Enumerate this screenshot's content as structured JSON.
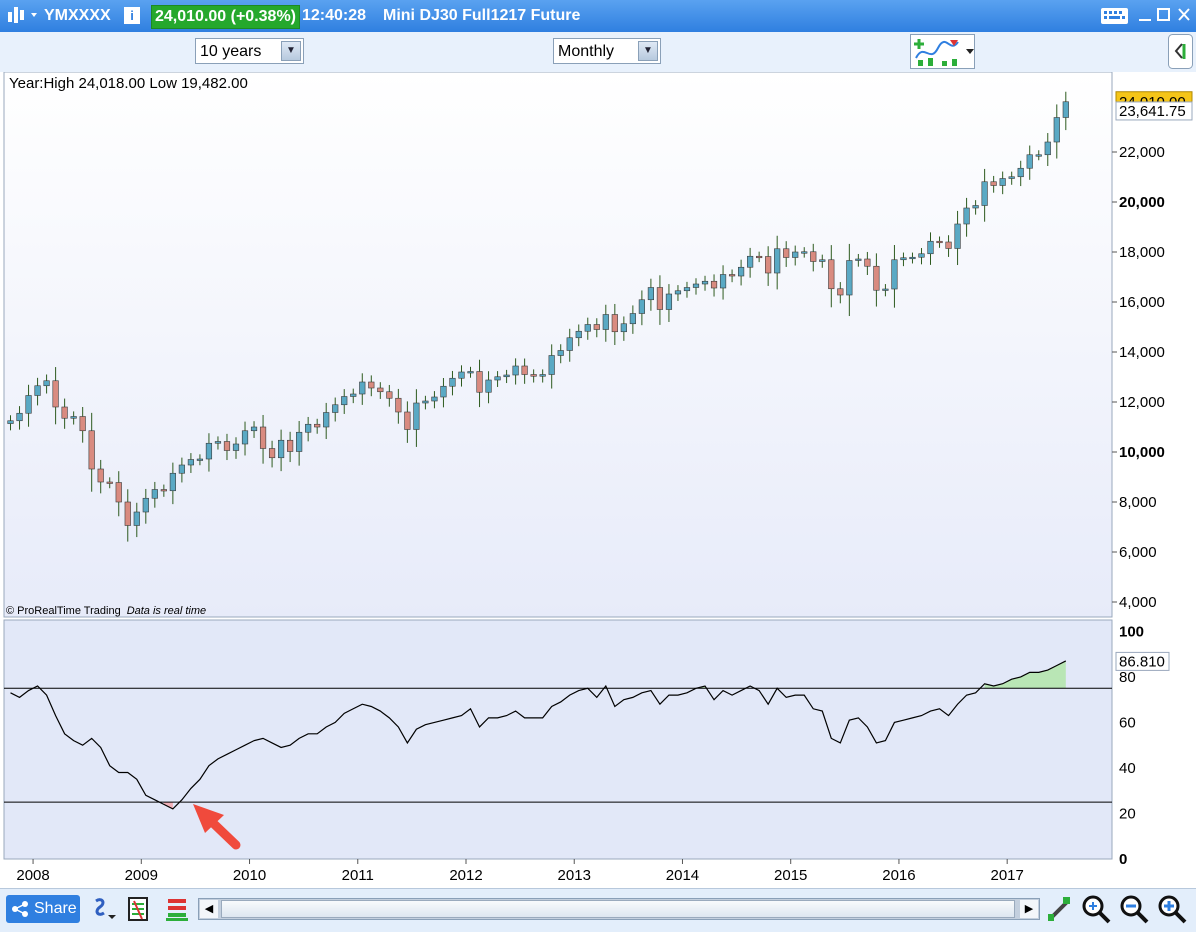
{
  "window": {
    "symbol": "YMXXXX",
    "price_badge": "24,010.00 (+0.38%)",
    "time": "12:40:28",
    "instrument": "Mini DJ30 Full1217 Future"
  },
  "toolbar": {
    "period_select": "10 years",
    "interval_select": "Monthly"
  },
  "statusbar": {
    "share_label": "Share"
  },
  "colors": {
    "up_candle": "#5aa9c4",
    "down_candle": "#d98b80",
    "wick": "#2d5a1e",
    "price_badge_bg": "#25a82c",
    "last_price_label_bg": "#f5c518",
    "indicator_overbought_fill": "#b9e6b5",
    "indicator_oversold_fill": "#f0b0b8",
    "arrow": "#f04a3c"
  },
  "chart_data": [
    {
      "type": "candlestick",
      "info_text": "Year:High 24,018.00 Low 19,482.00",
      "watermark": "© ProRealTime Trading",
      "watermark_note": "Data is real time",
      "last_price_label": "24,010.00",
      "prev_close_label": "23,641.75",
      "ylim": [
        3400,
        25200
      ],
      "yticks": [
        "4,000",
        "6,000",
        "8,000",
        "10,000",
        "12,000",
        "14,000",
        "16,000",
        "18,000",
        "20,000",
        "22,000"
      ],
      "xticks": [
        "2008",
        "2009",
        "2010",
        "2011",
        "2012",
        "2013",
        "2014",
        "2015",
        "2016",
        "2017"
      ],
      "grid": false,
      "close_series_monthly": [
        11250,
        11550,
        12260,
        12650,
        12850,
        11800,
        11350,
        11420,
        10850,
        9320,
        8800,
        8780,
        8000,
        7060,
        7600,
        8150,
        8500,
        8450,
        9150,
        9480,
        9700,
        9720,
        10350,
        10420,
        10060,
        10320,
        10850,
        11000,
        10140,
        9770,
        10470,
        10020,
        10790,
        11110,
        11000,
        11580,
        11890,
        12220,
        12320,
        12800,
        12560,
        12410,
        12150,
        11600,
        10900,
        11960,
        12040,
        12200,
        12630,
        12950,
        13200,
        13220,
        12390,
        12880,
        13010,
        13080,
        13440,
        13100,
        13030,
        13100,
        13860,
        14060,
        14570,
        14830,
        15100,
        14900,
        15500,
        14810,
        15130,
        15540,
        16090,
        16580,
        15700,
        16320,
        16450,
        16580,
        16720,
        16830,
        16560,
        17100,
        17040,
        17390,
        17830,
        17820,
        17160,
        18130,
        17780,
        18000,
        18010,
        17620,
        17690,
        16530,
        16280,
        17660,
        17720,
        17430,
        16470,
        16520,
        17690,
        17770,
        17790,
        17930,
        18430,
        18400,
        18140,
        19120,
        19760,
        19860,
        20810,
        20660,
        20940,
        21010,
        21350,
        21890,
        21890,
        22400,
        23380,
        24010
      ],
      "chart_open": 2007.75,
      "chart_close": 2017.95
    },
    {
      "type": "line",
      "name": "indicator",
      "last_value_label": "86.810",
      "ylim": [
        0,
        105
      ],
      "yticks": [
        "0",
        "20",
        "40",
        "60",
        "80",
        "100"
      ],
      "upper_level": 75,
      "lower_level": 25,
      "values": [
        73,
        71,
        74,
        76,
        72,
        63,
        55,
        52,
        50,
        53,
        49,
        41,
        38,
        38,
        35,
        28,
        26,
        24,
        22,
        26,
        31,
        35,
        41,
        44,
        46,
        48,
        50,
        52,
        53,
        51,
        49,
        50,
        53,
        55,
        55,
        58,
        60,
        64,
        66,
        68,
        67,
        65,
        62,
        58,
        51,
        57,
        59,
        60,
        61,
        62,
        63,
        66,
        58,
        62,
        62,
        63,
        65,
        62,
        62,
        62,
        67,
        69,
        72,
        74,
        75,
        71,
        76,
        67,
        70,
        71,
        73,
        74,
        68,
        72,
        72,
        73,
        75,
        76,
        70,
        74,
        72,
        74,
        76,
        74,
        68,
        75,
        71,
        72,
        72,
        66,
        65,
        53,
        51,
        61,
        62,
        58,
        51,
        52,
        60,
        61,
        62,
        63,
        65,
        66,
        63,
        68,
        72,
        73,
        77,
        76,
        77,
        79,
        80,
        82,
        82,
        83,
        85,
        87
      ]
    }
  ]
}
